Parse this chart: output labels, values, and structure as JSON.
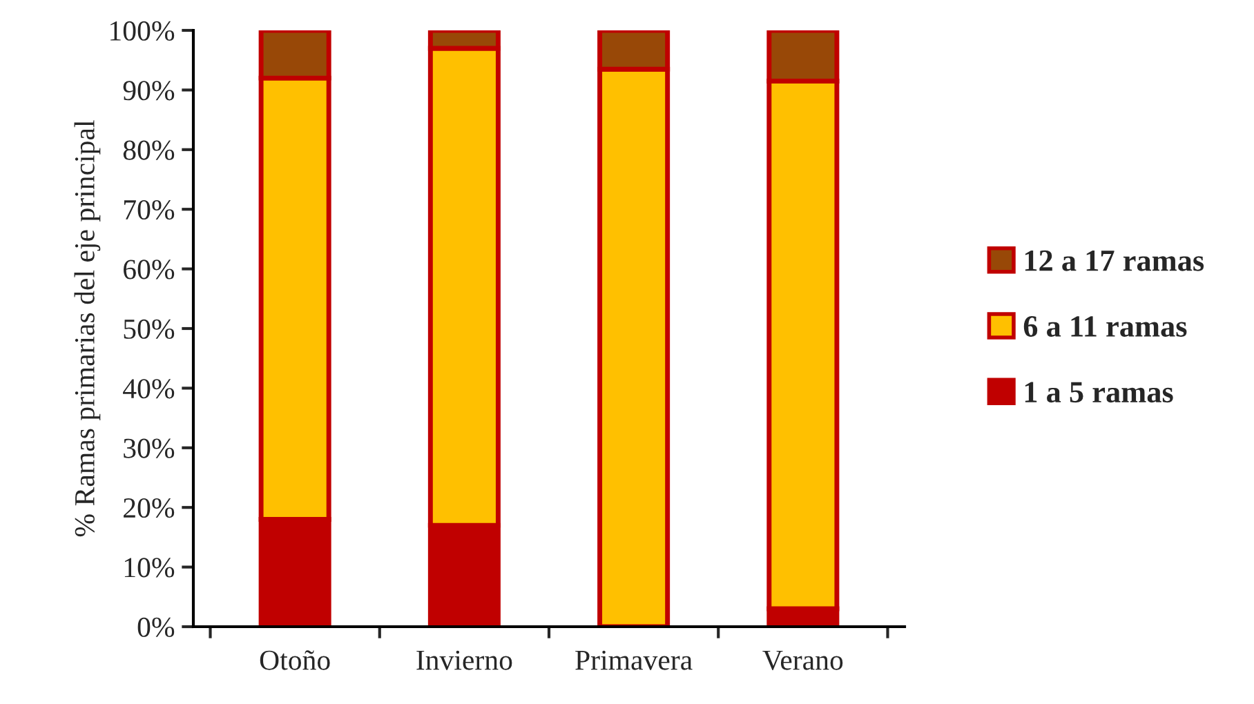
{
  "chart_data": {
    "type": "bar",
    "stacked": true,
    "ylabel": "% Ramas primarias del eje principal",
    "categories": [
      "Otoño",
      "Invierno",
      "Primavera",
      "Verano"
    ],
    "series": [
      {
        "name": "1 a 5 ramas",
        "color": "#c00000",
        "values": [
          18,
          17,
          0,
          3
        ]
      },
      {
        "name": "6 a 11 ramas",
        "color": "#ffc000",
        "values": [
          74,
          80,
          93.5,
          88.5
        ]
      },
      {
        "name": "12 a 17 ramas",
        "color": "#984807",
        "values": [
          8,
          3,
          6.5,
          8.5
        ]
      }
    ],
    "ylim": [
      0,
      100
    ],
    "yticks": [
      {
        "value": 0,
        "label": "0%"
      },
      {
        "value": 10,
        "label": "10%"
      },
      {
        "value": 20,
        "label": "20%"
      },
      {
        "value": 30,
        "label": "30%"
      },
      {
        "value": 40,
        "label": "40%"
      },
      {
        "value": 50,
        "label": "50%"
      },
      {
        "value": 60,
        "label": "60%"
      },
      {
        "value": 70,
        "label": "70%"
      },
      {
        "value": 80,
        "label": "80%"
      },
      {
        "value": 90,
        "label": "90%"
      },
      {
        "value": 100,
        "label": "100%"
      }
    ],
    "grid": false,
    "legend": "right"
  }
}
